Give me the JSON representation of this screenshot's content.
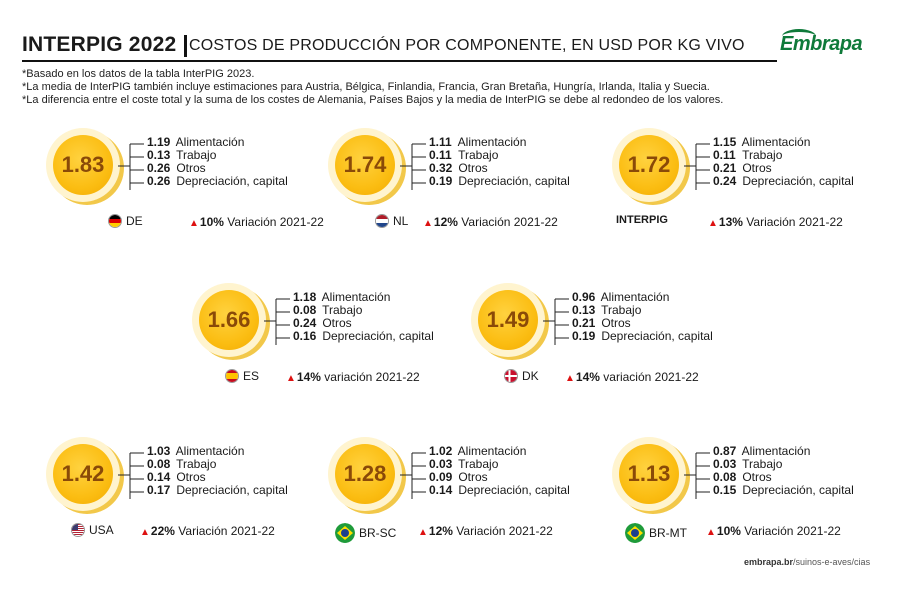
{
  "header": {
    "title": "INTERPIG 2022",
    "subtitle": "COSTOS DE PRODUCCIÓN POR COMPONENTE, EN USD POR KG VIVO",
    "logo_text": "Embrapa"
  },
  "notes": [
    "*Basado en los datos de la tabla InterPIG 2023.",
    "*La media de InterPIG también incluye estimaciones para Austria, Bélgica, Finlandia, Francia, Gran Bretaña, Hungría, Irlanda, Italia y Suecia.",
    "*La diferencia entre el coste total y la suma de los costes de Alemania, Países Bajos y la media de InterPIG se debe al redondeo de los valores."
  ],
  "cards": [
    {
      "code": "DE",
      "total": "1.83",
      "rows": [
        {
          "value": "1.19",
          "label": "Alimentación"
        },
        {
          "value": "0.13",
          "label": "Trabajo"
        },
        {
          "value": "0.26",
          "label": "Otros"
        },
        {
          "value": "0.26",
          "label": "Depreciación, capital"
        }
      ],
      "variation_pct": "10%",
      "variation_label": "Variación 2021-22",
      "flag": "germany"
    },
    {
      "code": "NL",
      "total": "1.74",
      "rows": [
        {
          "value": "1.11",
          "label": "Alimentación"
        },
        {
          "value": "0.11",
          "label": "Trabajo"
        },
        {
          "value": "0.32",
          "label": "Otros"
        },
        {
          "value": "0.19",
          "label": "Depreciación, capital"
        }
      ],
      "variation_pct": "12%",
      "variation_label": "Variación 2021-22",
      "flag": "netherlands"
    },
    {
      "code": "INTERPIG",
      "total": "1.72",
      "rows": [
        {
          "value": "1.15",
          "label": "Alimentación"
        },
        {
          "value": "0.11",
          "label": "Trabajo"
        },
        {
          "value": "0.21",
          "label": "Otros"
        },
        {
          "value": "0.24",
          "label": "Depreciación, capital"
        }
      ],
      "variation_pct": "13%",
      "variation_label": "Variación 2021-22",
      "flag": ""
    },
    {
      "code": "ES",
      "total": "1.66",
      "rows": [
        {
          "value": "1.18",
          "label": "Alimentación"
        },
        {
          "value": "0.08",
          "label": "Trabajo"
        },
        {
          "value": "0.24",
          "label": "Otros"
        },
        {
          "value": "0.16",
          "label": "Depreciación, capital"
        }
      ],
      "variation_pct": "14%",
      "variation_label": "variación 2021-22",
      "flag": "spain"
    },
    {
      "code": "DK",
      "total": "1.49",
      "rows": [
        {
          "value": "0.96",
          "label": "Alimentación"
        },
        {
          "value": "0.13",
          "label": "Trabajo"
        },
        {
          "value": "0.21",
          "label": "Otros"
        },
        {
          "value": "0.19",
          "label": "Depreciación, capital"
        }
      ],
      "variation_pct": "14%",
      "variation_label": "variación 2021-22",
      "flag": "denmark"
    },
    {
      "code": "USA",
      "total": "1.42",
      "rows": [
        {
          "value": "1.03",
          "label": "Alimentación"
        },
        {
          "value": "0.08",
          "label": "Trabajo"
        },
        {
          "value": "0.14",
          "label": "Otros"
        },
        {
          "value": "0.17",
          "label": "Depreciación, capital"
        }
      ],
      "variation_pct": "22%",
      "variation_label": "Variación 2021-22",
      "flag": "usa"
    },
    {
      "code": "BR-SC",
      "total": "1.28",
      "rows": [
        {
          "value": "1.02",
          "label": "Alimentación"
        },
        {
          "value": "0.03",
          "label": "Trabajo"
        },
        {
          "value": "0.09",
          "label": "Otros"
        },
        {
          "value": "0.14",
          "label": "Depreciación, capital"
        }
      ],
      "variation_pct": "12%",
      "variation_label": "Variación 2021-22",
      "flag": "brazil"
    },
    {
      "code": "BR-MT",
      "total": "1.13",
      "rows": [
        {
          "value": "0.87",
          "label": "Alimentación"
        },
        {
          "value": "0.03",
          "label": "Trabajo"
        },
        {
          "value": "0.08",
          "label": "Otros"
        },
        {
          "value": "0.15",
          "label": "Depreciación, capital"
        }
      ],
      "variation_pct": "10%",
      "variation_label": "Variación 2021-22",
      "flag": "brazil"
    }
  ],
  "footer": {
    "site": "embrapa.br",
    "path": "/suinos-e-aves/cias"
  },
  "colors": {
    "badge": "#fbbd12",
    "badge_text": "#8a4a08",
    "arrow": "#dd1111",
    "logo": "#0f7a3a"
  }
}
